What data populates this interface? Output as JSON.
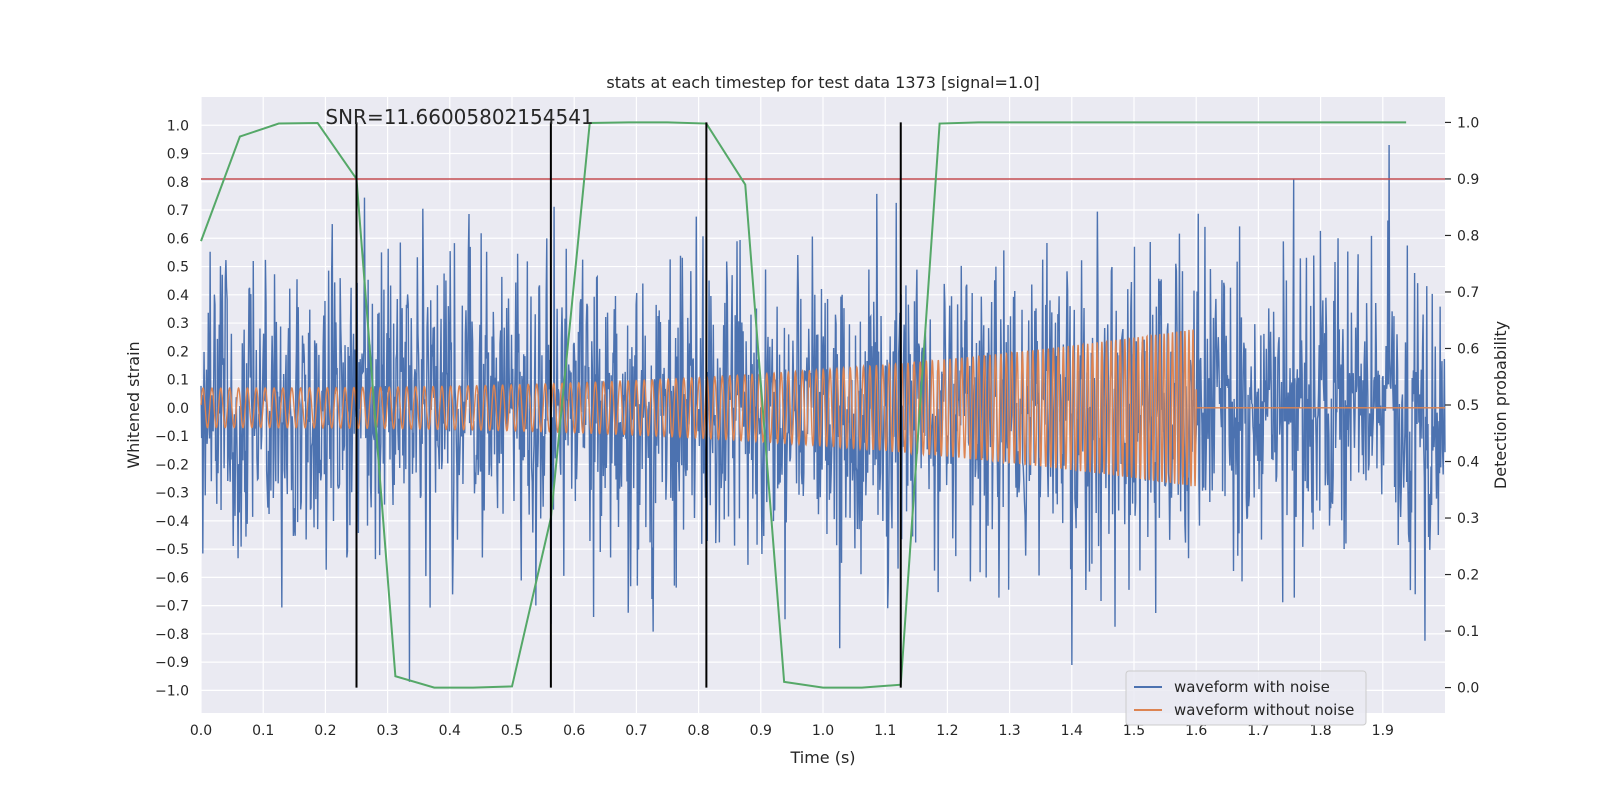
{
  "chart_data": {
    "type": "line",
    "title": "stats at each timestep for test data 1373 [signal=1.0]",
    "xlabel": "Time (s)",
    "ylabel": "Whitened strain",
    "y2label": "Detection probability",
    "xlim": [
      0.0,
      2.0
    ],
    "ylim": [
      -1.08,
      1.1
    ],
    "y2lim": [
      -0.045,
      1.045
    ],
    "xticks": [
      0.0,
      0.1,
      0.2,
      0.3,
      0.4,
      0.5,
      0.6,
      0.7,
      0.8,
      0.9,
      1.0,
      1.1,
      1.2,
      1.3,
      1.4,
      1.5,
      1.6,
      1.7,
      1.8,
      1.9
    ],
    "xtick_labels": [
      "0.0",
      "0.1",
      "0.2",
      "0.3",
      "0.4",
      "0.5",
      "0.6",
      "0.7",
      "0.8",
      "0.9",
      "1.0",
      "1.1",
      "1.2",
      "1.3",
      "1.4",
      "1.5",
      "1.6",
      "1.7",
      "1.8",
      "1.9"
    ],
    "yticks": [
      -1.0,
      -0.9,
      -0.8,
      -0.7,
      -0.6,
      -0.5,
      -0.4,
      -0.3,
      -0.2,
      -0.1,
      0.0,
      0.1,
      0.2,
      0.3,
      0.4,
      0.5,
      0.6,
      0.7,
      0.8,
      0.9,
      1.0
    ],
    "ytick_labels": [
      "−1.0",
      "−0.9",
      "−0.8",
      "−0.7",
      "−0.6",
      "−0.5",
      "−0.4",
      "−0.3",
      "−0.2",
      "−0.1",
      "0.0",
      "0.1",
      "0.2",
      "0.3",
      "0.4",
      "0.5",
      "0.6",
      "0.7",
      "0.8",
      "0.9",
      "1.0"
    ],
    "y2ticks": [
      0.0,
      0.1,
      0.2,
      0.3,
      0.4,
      0.5,
      0.6,
      0.7,
      0.8,
      0.9,
      1.0
    ],
    "y2tick_labels": [
      "0.0",
      "0.1",
      "0.2",
      "0.3",
      "0.4",
      "0.5",
      "0.6",
      "0.7",
      "0.8",
      "0.9",
      "1.0"
    ],
    "grid": true,
    "legend_position": "bottom-right",
    "annotation": "SNR=11.66005802154541",
    "threshold_y2": 0.9,
    "vertical_lines_x": [
      0.25,
      0.5625,
      0.8125,
      1.125
    ],
    "vertical_lines_yrange": [
      0.0,
      1.0
    ],
    "series": [
      {
        "name": "waveform with noise",
        "color": "#4c72b0",
        "x_range": [
          0.0,
          2.0
        ],
        "n_samples": 2048,
        "typical_range": [
          -0.6,
          0.6
        ],
        "extremes": [
          -0.98,
          1.0
        ],
        "note_points": [
          [
            1.4,
            1.0
          ],
          [
            1.4,
            -0.91
          ],
          [
            0.335,
            -0.97
          ],
          [
            1.91,
            0.93
          ]
        ]
      },
      {
        "name": "waveform without noise",
        "color": "#dd8452",
        "x_range": [
          0.0,
          1.6
        ],
        "amplitude_start": 0.07,
        "amplitude_end": 0.28,
        "flat_after": 1.6
      },
      {
        "name": "detection probability",
        "color": "#55a868",
        "axis": "y2",
        "x": [
          0.0,
          0.0625,
          0.125,
          0.1875,
          0.25,
          0.3125,
          0.375,
          0.4375,
          0.5,
          0.5625,
          0.625,
          0.6875,
          0.75,
          0.8125,
          0.875,
          0.9375,
          1.0,
          1.0625,
          1.125,
          1.1875,
          1.25,
          1.3125,
          1.375,
          1.4375,
          1.5,
          1.5625,
          1.625,
          1.6875,
          1.75,
          1.8125,
          1.875,
          1.9375
        ],
        "y": [
          0.79,
          0.975,
          0.998,
          0.999,
          0.9,
          0.02,
          0.0,
          0.0,
          0.002,
          0.3,
          0.999,
          1.0,
          1.0,
          0.998,
          0.89,
          0.01,
          0.0,
          0.0,
          0.005,
          0.998,
          1.0,
          1.0,
          1.0,
          1.0,
          1.0,
          1.0,
          1.0,
          1.0,
          1.0,
          1.0,
          1.0,
          1.0
        ]
      }
    ],
    "colors": {
      "background": "#eaeaf2",
      "grid": "#ffffff",
      "threshold": "#c44e52",
      "vline": "#000000"
    }
  }
}
